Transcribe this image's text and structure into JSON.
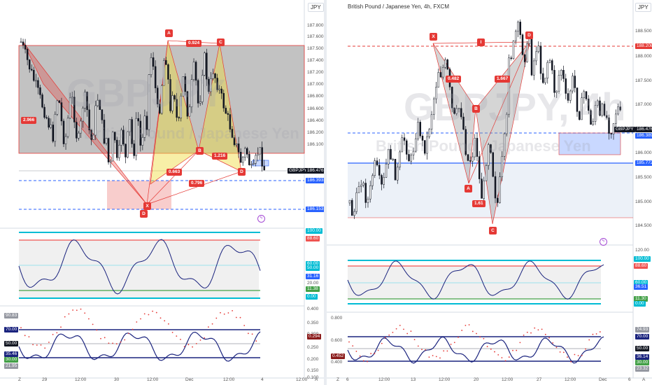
{
  "left_chart": {
    "watermark_symbol": "GBPJPY",
    "watermark_name": "British Pound / Japanese Yen",
    "currency_badge": "JPY",
    "price_scale": [
      "187.800",
      "187.600",
      "187.500",
      "187.400",
      "187.200",
      "187.000",
      "186.800",
      "186.600",
      "186.400",
      "186.200",
      "186.100"
    ],
    "price_tags": [
      {
        "text": "GBPJPY",
        "color": "#131722"
      },
      {
        "text": "186.476",
        "color": "#131722"
      },
      {
        "text": "186.393",
        "color": "#2962ff"
      },
      {
        "text": "186.153",
        "color": "#2962ff"
      }
    ],
    "pattern_labels": [
      "X",
      "A",
      "B",
      "C",
      "D",
      "D"
    ],
    "ratios": [
      "2.966",
      "0.924",
      "0.663",
      "1.216",
      "0.796"
    ],
    "osc1_scale": [
      "100.00",
      "88.60",
      "60.00",
      "50.00",
      "31.16",
      "20.00",
      "11.38",
      "0.00"
    ],
    "osc2_scale": [
      "90.83",
      "70.00",
      "50.00",
      "35.46",
      "30.00",
      "21.95"
    ],
    "osc2_right_scale": [
      "0.400",
      "0.350",
      "0.300",
      "0.294",
      "0.250",
      "0.200",
      "0.150",
      "0.100"
    ],
    "x_labels": [
      "29",
      "12:00",
      "30",
      "12:00",
      "Dec",
      "12:00",
      "4",
      "12:00"
    ],
    "corner_left": "Z",
    "corner_right": "A"
  },
  "right_chart": {
    "title": "British Pound / Japanese Yen, 4h, FXCM",
    "watermark_symbol": "GBPJPY, 4h",
    "watermark_name": "British Pound / Japanese Yen",
    "currency_badge": "JPY",
    "price_scale": [
      "188.500",
      "188.208",
      "188.000",
      "187.500",
      "187.000",
      "186.500",
      "186.000",
      "185.772",
      "185.500",
      "185.000",
      "184.500"
    ],
    "price_tags": [
      {
        "text": "188.208",
        "color": "#e53935"
      },
      {
        "text": "GBPJPY",
        "color": "#131722"
      },
      {
        "text": "186.476",
        "color": "#131722"
      },
      {
        "text": "186.389",
        "color": "#2962ff"
      },
      {
        "text": "185.772",
        "color": "#2962ff"
      }
    ],
    "pattern_labels": [
      "X",
      "A",
      "B",
      "C",
      "D",
      "I"
    ],
    "ratios": [
      "0.482",
      "1.667",
      "1.61"
    ],
    "osc1_scale": [
      "120.00",
      "100.00",
      "88.60",
      "60.00",
      "36.51",
      "11.30",
      "0.00"
    ],
    "osc2_scale": [
      "0.800",
      "0.600",
      "0.452",
      "0.400"
    ],
    "osc2_right_scale": [
      "74.93",
      "70.00",
      "50.00",
      "36.14",
      "30.00",
      "23.32"
    ],
    "x_labels": [
      "6",
      "12:00",
      "13",
      "12:00",
      "20",
      "12:00",
      "27",
      "12:00",
      "Dec",
      "6"
    ],
    "corner_left": "Z",
    "corner_right": "A"
  }
}
